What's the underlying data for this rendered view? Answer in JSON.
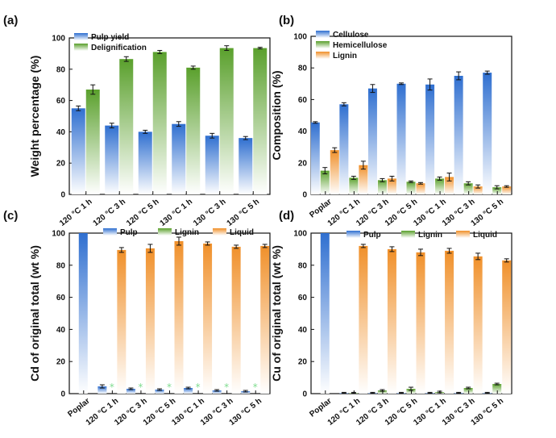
{
  "colors": {
    "blue": "#2f6fd0",
    "green": "#5aa02c",
    "orange": "#f0902a",
    "star": "#7fdc8f"
  },
  "chart_data": [
    {
      "panel": "(a)",
      "type": "bar",
      "ylabel": "Weight percentage (%)",
      "ylim": [
        0,
        100
      ],
      "yticks": [
        0,
        20,
        40,
        60,
        80,
        100
      ],
      "categories": [
        "120 °C 1 h",
        "120 °C 3 h",
        "120 °C 5 h",
        "130 °C 1 h",
        "130 °C 3 h",
        "130 °C 5 h"
      ],
      "legend_position": "top-left",
      "series": [
        {
          "name": "Pulp yield",
          "color": "blue",
          "values": [
            55,
            44,
            40,
            45,
            37.5,
            36
          ],
          "errors": [
            1.5,
            1.5,
            1,
            1.5,
            1.5,
            1
          ]
        },
        {
          "name": "Delignification",
          "color": "green",
          "values": [
            67,
            86.5,
            91,
            81,
            93.5,
            93.5
          ],
          "errors": [
            3,
            1.5,
            1,
            1,
            1.5,
            0.5
          ]
        }
      ]
    },
    {
      "panel": "(b)",
      "type": "bar",
      "ylabel": "Composition (%)",
      "ylim": [
        0,
        100
      ],
      "yticks": [
        0,
        20,
        40,
        60,
        80,
        100
      ],
      "categories": [
        "Poplar",
        "120 °C 1 h",
        "120 °C 3 h",
        "120 °C 5 h",
        "130 °C 1 h",
        "130 °C 3 h",
        "130 °C 5 h"
      ],
      "legend_position": "top-left",
      "series": [
        {
          "name": "Cellulose",
          "color": "blue",
          "values": [
            45.5,
            57,
            67,
            70,
            69.5,
            75,
            77
          ],
          "errors": [
            0.5,
            1,
            2.5,
            0.5,
            3.5,
            2.5,
            1
          ]
        },
        {
          "name": "Hemicellulose",
          "color": "green",
          "values": [
            15,
            10.5,
            9,
            8,
            10,
            7,
            4.5
          ],
          "errors": [
            2,
            1,
            1,
            0.5,
            1,
            1,
            1
          ]
        },
        {
          "name": "Lignin",
          "color": "orange",
          "values": [
            28,
            18.5,
            10,
            7,
            11,
            5,
            5
          ],
          "errors": [
            1.5,
            2.5,
            1.5,
            0.5,
            2.5,
            1,
            0.5
          ]
        }
      ]
    },
    {
      "panel": "(c)",
      "type": "bar",
      "ylabel": "Cd of original total (wt %)",
      "ylim": [
        0,
        100
      ],
      "yticks": [
        0,
        20,
        40,
        60,
        80,
        100
      ],
      "categories": [
        "Poplar",
        "120 °C 1 h",
        "120 °C 3 h",
        "120 °C 5 h",
        "130 °C 1 h",
        "130 °C 3 h",
        "130 °C 5 h"
      ],
      "legend_position": "top-center",
      "marker": "*",
      "series": [
        {
          "name": "Pulp",
          "color": "blue",
          "values": [
            100,
            4.5,
            3,
            2.5,
            3.5,
            2,
            1.5
          ],
          "errors": [
            0,
            1,
            0.5,
            0.5,
            0.5,
            0.5,
            0.5
          ]
        },
        {
          "name": "Lignin",
          "color": "green",
          "values": [
            null,
            0,
            0,
            0,
            0,
            0,
            0
          ],
          "errors": [
            0,
            0,
            0,
            0,
            0,
            0,
            0
          ]
        },
        {
          "name": "Liquid",
          "color": "orange",
          "values": [
            null,
            89.5,
            90.5,
            95,
            93.5,
            91.5,
            92
          ],
          "errors": [
            0,
            1.5,
            2.5,
            2.5,
            1,
            1,
            1
          ]
        }
      ]
    },
    {
      "panel": "(d)",
      "type": "bar",
      "ylabel": "Cu of original total (wt %)",
      "ylim": [
        0,
        100
      ],
      "yticks": [
        0,
        20,
        40,
        60,
        80,
        100
      ],
      "categories": [
        "Poplar",
        "120 °C 1 h",
        "120 °C 3 h",
        "120 °C 5 h",
        "130 °C 1 h",
        "130 °C 3 h",
        "130 °C 5 h"
      ],
      "legend_position": "top-center",
      "series": [
        {
          "name": "Pulp",
          "color": "blue",
          "values": [
            100,
            0.5,
            0.5,
            0.5,
            0.5,
            0.5,
            0.5
          ],
          "errors": [
            0,
            0.3,
            0.3,
            0.3,
            0.3,
            0.3,
            0.3
          ]
        },
        {
          "name": "Lignin",
          "color": "green",
          "values": [
            null,
            0.5,
            2,
            3,
            1,
            3.5,
            6
          ],
          "errors": [
            0,
            0.3,
            0.5,
            1,
            0.5,
            0.5,
            0.5
          ]
        },
        {
          "name": "Liquid",
          "color": "orange",
          "values": [
            null,
            92,
            90,
            88,
            89,
            85.5,
            83
          ],
          "errors": [
            0,
            1,
            1.5,
            2,
            1.5,
            2,
            1
          ]
        }
      ]
    }
  ]
}
